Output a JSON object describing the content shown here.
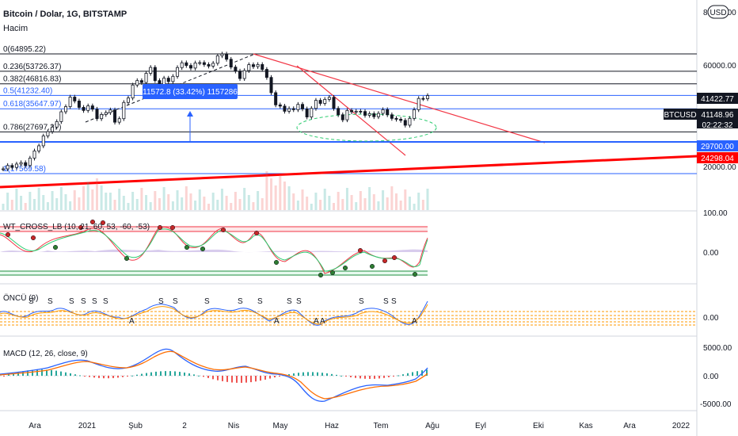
{
  "header": {
    "symbol": "Bitcoin / Dolar, 1G, BITSTAMP",
    "volume_label": "Hacim",
    "currency_button": "USD"
  },
  "main": {
    "price_axis": [
      "80000.00",
      "60000.00",
      "20000.00"
    ],
    "fib_levels": [
      {
        "label": "0(64895.22)",
        "price": 64895.22,
        "color": "#131722"
      },
      {
        "label": "0.236(53726.37)",
        "price": 53726.37,
        "color": "#131722"
      },
      {
        "label": "0.382(46816.83)",
        "price": 46816.83,
        "color": "#131722"
      },
      {
        "label": "0.5(41232.40)",
        "price": 41232.4,
        "color": "#2962ff"
      },
      {
        "label": "0.618(35647.97)",
        "price": 35647.97,
        "color": "#2962ff"
      },
      {
        "label": "0.786(27697.27)",
        "price": 27697.27,
        "color": "#131722"
      },
      {
        "label": "1(17569.58)",
        "price": 17569.58,
        "color": "#2962ff"
      }
    ],
    "price_tags": [
      {
        "text": "41422.77",
        "price": 41422.77,
        "bg": "#131722"
      },
      {
        "text": "BTCUSD",
        "price": 39300,
        "bg": "#131722"
      },
      {
        "text": "41148.96",
        "price": 39300,
        "bg": "#131722"
      },
      {
        "text": "02:22:32",
        "price": 39300,
        "bg": "#131722"
      },
      {
        "text": "29700.00",
        "price": 29700,
        "bg": "#2962ff"
      },
      {
        "text": "24298.04",
        "price": 24298.04,
        "bg": "#ff0000"
      }
    ],
    "measure_label": "11572.8 (33.42%) 1157286"
  },
  "panes": {
    "wt_cross": {
      "label": "WT_CROSS_LB (10, 21, 60, 53, -60, -53)",
      "axis": [
        "100.00",
        "0.00"
      ]
    },
    "oncu": {
      "label": "ÖNCÜ (9)",
      "axis": [
        "0.00"
      ]
    },
    "macd": {
      "label": "MACD (12, 26, close, 9)",
      "axis": [
        "5000.00",
        "0.00",
        "-5000.00"
      ]
    }
  },
  "time_axis": [
    "Ara",
    "2021",
    "Şub",
    "2",
    "Nis",
    "May",
    "Haz",
    "Tem",
    "Ağu",
    "Eyl",
    "Eki",
    "Kas",
    "Ara",
    "2022"
  ],
  "chart_data": {
    "type": "line",
    "title": "Bitcoin / Dolar, 1G, BITSTAMP",
    "ylim": [
      17000,
      82000
    ],
    "y_scale": "log",
    "series": [
      {
        "name": "BTCUSD",
        "values": [
          18500,
          19200,
          18800,
          19500,
          19800,
          19200,
          20800,
          22500,
          23800,
          26500,
          27800,
          29200,
          31000,
          34500,
          36500,
          40500,
          38800,
          36200,
          35000,
          36800,
          35500,
          32000,
          33500,
          34200,
          35200,
          30800,
          32000,
          38200,
          40100,
          46200,
          48500,
          47500,
          52500,
          56000,
          48500,
          46500,
          49800,
          48000,
          50800,
          55900,
          58900,
          57200,
          55600,
          58800,
          59000,
          57800,
          56800,
          58600,
          63600,
          64800,
          61200,
          56200,
          53800,
          49600,
          54100,
          57700,
          56500,
          57800,
          54800,
          50200,
          42500,
          37200,
          36700,
          34700,
          35700,
          35300,
          37400,
          35600,
          32600,
          35800,
          39100,
          37800,
          39500,
          40400,
          35800,
          33400,
          31600,
          35000,
          34500,
          34700,
          34600,
          33200,
          33800,
          32700,
          33900,
          35300,
          33400,
          32100,
          31800,
          31400,
          29800,
          32100,
          35300,
          39900,
          39800,
          41149
        ]
      }
    ]
  }
}
